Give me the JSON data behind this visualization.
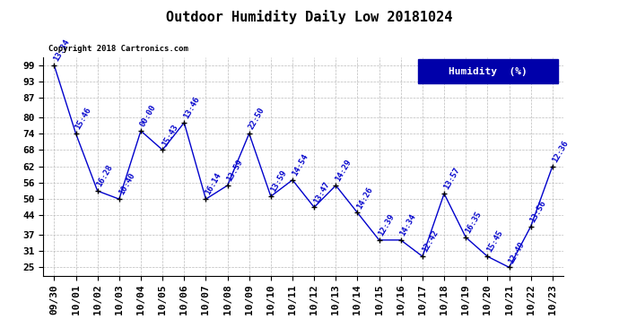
{
  "title": "Outdoor Humidity Daily Low 20181024",
  "copyright": "Copyright 2018 Cartronics.com",
  "legend_label": "Humidity  (%)",
  "x_labels": [
    "09/30",
    "10/01",
    "10/02",
    "10/03",
    "10/04",
    "10/05",
    "10/06",
    "10/07",
    "10/08",
    "10/09",
    "10/10",
    "10/11",
    "10/12",
    "10/13",
    "10/14",
    "10/15",
    "10/16",
    "10/17",
    "10/18",
    "10/19",
    "10/20",
    "10/21",
    "10/22",
    "10/23"
  ],
  "y_values": [
    99,
    74,
    53,
    50,
    75,
    68,
    78,
    50,
    55,
    74,
    51,
    57,
    47,
    55,
    45,
    35,
    35,
    29,
    52,
    36,
    29,
    25,
    40,
    62
  ],
  "point_labels": [
    "13:34",
    "15:46",
    "16:28",
    "10:40",
    "00:00",
    "15:43",
    "13:46",
    "16:14",
    "13:59",
    "22:50",
    "13:59",
    "14:54",
    "13:47",
    "14:29",
    "14:26",
    "12:39",
    "14:34",
    "12:42",
    "13:57",
    "16:35",
    "15:45",
    "12:49",
    "13:56",
    "12:36"
  ],
  "y_ticks": [
    25,
    31,
    37,
    44,
    50,
    56,
    62,
    68,
    74,
    80,
    87,
    93,
    99
  ],
  "line_color": "#0000cc",
  "marker_color": "#000000",
  "bg_color": "#ffffff",
  "grid_color": "#bbbbbb",
  "title_fontsize": 11,
  "label_fontsize": 6.5,
  "tick_fontsize": 8,
  "legend_bg": "#0000aa",
  "legend_fg": "#ffffff",
  "ylim_min": 22,
  "ylim_max": 102
}
